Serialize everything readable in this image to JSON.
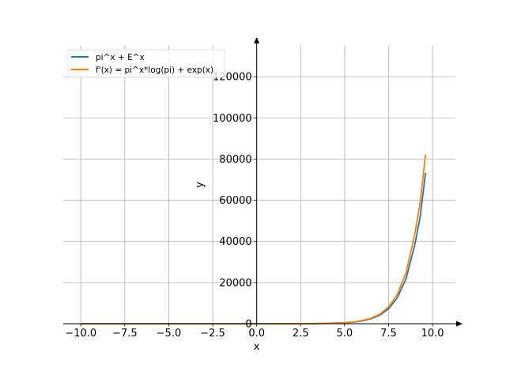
{
  "chart_data": {
    "type": "line",
    "xlabel": "x",
    "ylabel": "y",
    "xlim": [
      -11,
      11.3
    ],
    "ylim": [
      0,
      135000
    ],
    "grid": true,
    "legend_position": "top-left",
    "x_ticks": [
      -10,
      -7.5,
      -5,
      -2.5,
      0,
      2.5,
      5,
      7.5,
      10
    ],
    "x_tick_labels": [
      "−10.0",
      "−7.5",
      "−5.0",
      "−2.5",
      "0.0",
      "2.5",
      "5.0",
      "7.5",
      "10.0"
    ],
    "y_ticks": [
      0,
      20000,
      40000,
      60000,
      80000,
      100000,
      120000
    ],
    "y_tick_labels": [
      "0",
      "20000",
      "40000",
      "60000",
      "80000",
      "100000",
      "120000"
    ],
    "series": [
      {
        "name": "pi^x + E^x",
        "color": "#1f77b4",
        "x": [
          -10,
          -8,
          -6,
          -4,
          -2,
          0,
          1,
          2,
          3,
          4,
          5,
          5.5,
          6,
          6.5,
          7,
          7.5,
          8,
          8.5,
          9,
          9.3,
          9.6
        ],
        "y": [
          0,
          0,
          0,
          0.02,
          0.24,
          2,
          5.86,
          17.26,
          51.09,
          152.0,
          454.8,
          784.6,
          1364.4,
          2377.1,
          4147.1,
          7242.8,
          12655.6,
          22115.7,
          38718.6,
          52088.8,
          73240.3
        ]
      },
      {
        "name": "f'(x) = pi^x*log(pi) + exp(x)",
        "color": "#ff7f0e",
        "x": [
          -10,
          -8,
          -6,
          -4,
          -2,
          0,
          1,
          2,
          3,
          4,
          5,
          5.5,
          6,
          6.5,
          7,
          7.5,
          8,
          8.5,
          9,
          9.3,
          9.6
        ],
        "y": [
          0,
          0,
          0,
          0.03,
          0.25,
          2.14,
          6.31,
          18.69,
          55.58,
          166.5,
          501.9,
          868.8,
          1517.0,
          2656.4,
          4653.6,
          8157.8,
          14291.4,
          25037.0,
          43941.3,
          59142.6,
          82164.9
        ]
      }
    ]
  }
}
